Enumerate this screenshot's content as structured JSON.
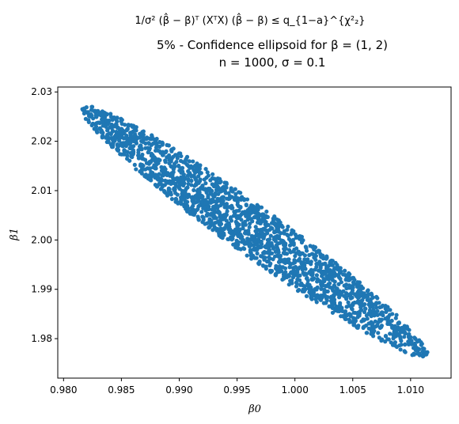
{
  "chart_data": {
    "type": "scatter",
    "title_lines": [
      "1/σ² (β̂ − β)ᵀ (XᵀX) (β̂ − β) ≤ q_{1−a}^{χ²₂}",
      "5% - Confidence ellipsoid for β = (1, 2)",
      "n = 1000, σ = 0.1"
    ],
    "xlabel": "β0",
    "ylabel": "β1",
    "xlim": [
      0.9795,
      1.0135
    ],
    "ylim": [
      1.972,
      2.031
    ],
    "xticks": [
      0.98,
      0.985,
      0.99,
      0.995,
      1.0,
      1.005,
      1.01
    ],
    "xtick_labels": [
      "0.980",
      "0.985",
      "0.990",
      "0.995",
      "1.000",
      "1.005",
      "1.010"
    ],
    "yticks": [
      1.98,
      1.99,
      2.0,
      2.01,
      2.02,
      2.03
    ],
    "ytick_labels": [
      "1.98",
      "1.99",
      "2.00",
      "2.01",
      "2.02",
      "2.03"
    ],
    "grid": false,
    "legend": "none",
    "marker_color": "#1f77b4",
    "ellipse": {
      "center": [
        0.9965,
        2.0017
      ],
      "endpoint_upper_left": [
        0.9815,
        2.0265
      ],
      "endpoint_lower_right": [
        1.0115,
        1.977
      ],
      "minor_half_width_beta1": 0.006
    },
    "approx_point_count": 2000
  }
}
